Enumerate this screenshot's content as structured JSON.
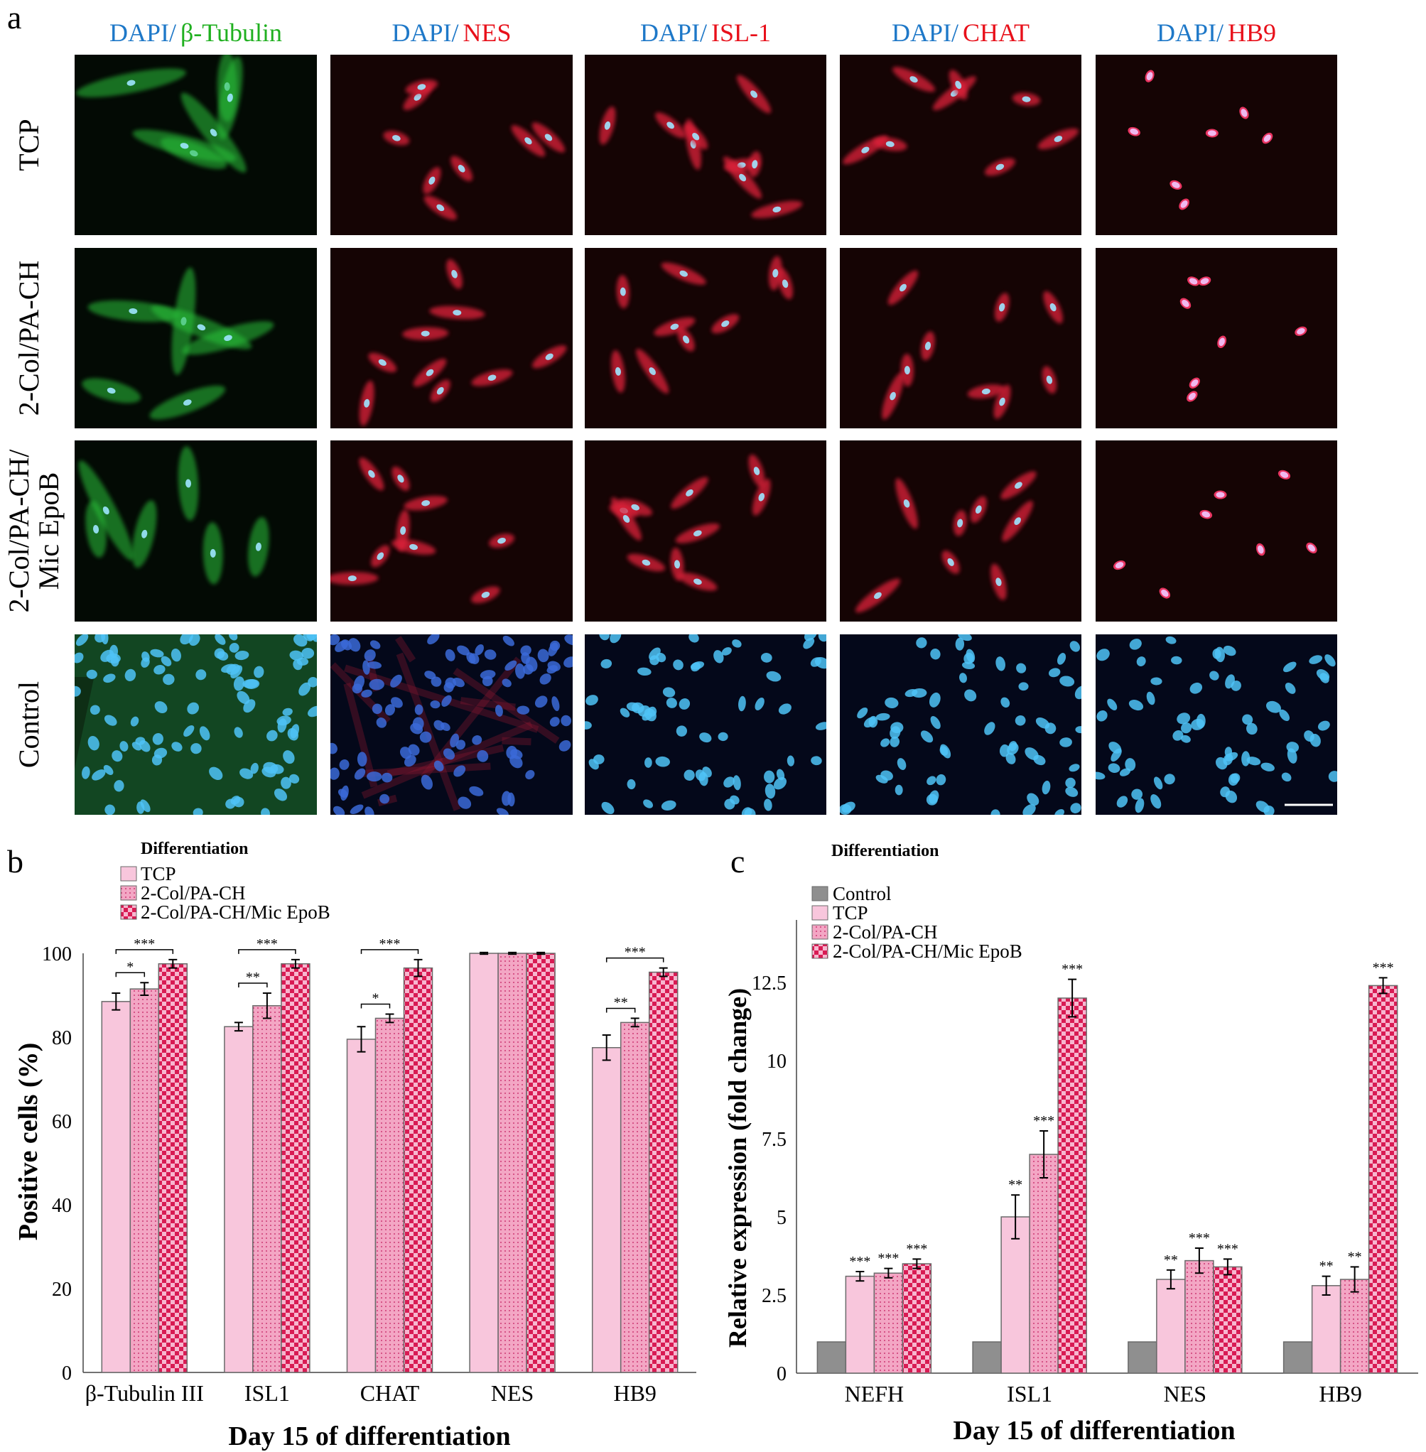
{
  "panels": {
    "a": "a",
    "b": "b",
    "c": "c"
  },
  "microscopy": {
    "columns": [
      {
        "prefix": "DAPI/",
        "marker": "β-Tubulin",
        "marker_color": "#20b020",
        "stain": "#2cc43a"
      },
      {
        "prefix": "DAPI/",
        "marker": "NES",
        "marker_color": "#e8101a",
        "stain": "#e0203a"
      },
      {
        "prefix": "DAPI/",
        "marker": "ISL-1",
        "marker_color": "#e8101a",
        "stain": "#e0203a"
      },
      {
        "prefix": "DAPI/",
        "marker": "CHAT",
        "marker_color": "#e8101a",
        "stain": "#e0203a"
      },
      {
        "prefix": "DAPI/",
        "marker": "HB9",
        "marker_color": "#e8101a",
        "stain": "#ee2050"
      }
    ],
    "prefix_color": "#1e78c8",
    "rows": [
      {
        "label_lines": [
          "TCP"
        ]
      },
      {
        "label_lines": [
          "2-Col/PA-CH"
        ]
      },
      {
        "label_lines": [
          "2-Col/PA-CH/",
          "Mic EpoB"
        ]
      },
      {
        "label_lines": [
          "Control"
        ]
      }
    ],
    "dapi_color": "#4fc3f7",
    "panel_background": "#150404",
    "control_background": "#04081a"
  },
  "chart_data": [
    {
      "id": "b",
      "type": "bar",
      "legend_title": "Differentiation",
      "legend_placement": "top-left",
      "categories": [
        "β-Tubulin III",
        "ISL1",
        "CHAT",
        "NES",
        "HB9"
      ],
      "series": [
        {
          "name": "TCP",
          "fill": "solid-pink",
          "values": [
            88.5,
            82.5,
            79.5,
            100,
            77.5
          ],
          "errors": [
            2.0,
            1.0,
            3.0,
            0.2,
            3.0
          ]
        },
        {
          "name": "2-Col/PA-CH",
          "fill": "dotted-pink",
          "values": [
            91.5,
            87.5,
            84.5,
            100,
            83.5
          ],
          "errors": [
            1.5,
            3.0,
            1.0,
            0.2,
            1.0
          ]
        },
        {
          "name": "2-Col/PA-CH/Mic EpoB",
          "fill": "checkered-red",
          "values": [
            97.5,
            97.5,
            96.5,
            100,
            95.5
          ],
          "errors": [
            1.0,
            1.0,
            2.0,
            0.2,
            1.0
          ]
        }
      ],
      "significance": [
        {
          "category": 0,
          "from": 0,
          "to": 1,
          "label": "*"
        },
        {
          "category": 0,
          "from": 0,
          "to": 2,
          "label": "***"
        },
        {
          "category": 1,
          "from": 0,
          "to": 1,
          "label": "**"
        },
        {
          "category": 1,
          "from": 0,
          "to": 2,
          "label": "***"
        },
        {
          "category": 2,
          "from": 0,
          "to": 1,
          "label": "*"
        },
        {
          "category": 2,
          "from": 0,
          "to": 2,
          "label": "***"
        },
        {
          "category": 4,
          "from": 0,
          "to": 1,
          "label": "**"
        },
        {
          "category": 4,
          "from": 0,
          "to": 2,
          "label": "***"
        }
      ],
      "xlabel": "Day 15 of differentiation",
      "ylabel": "Positive cells (%)",
      "ylim": [
        0,
        100
      ],
      "yticks": [
        0,
        20,
        40,
        60,
        80,
        100
      ],
      "grid": false
    },
    {
      "id": "c",
      "type": "bar",
      "legend_title": "Differentiation",
      "legend_placement": "top-left",
      "categories": [
        "NEFH",
        "ISL1",
        "NES",
        "HB9"
      ],
      "series": [
        {
          "name": "Control",
          "fill": "solid-gray",
          "values": [
            1.0,
            1.0,
            1.0,
            1.0
          ],
          "errors": [
            0.02,
            0.02,
            0.02,
            0.02
          ],
          "stars": [
            "",
            "",
            "",
            ""
          ]
        },
        {
          "name": "TCP",
          "fill": "solid-pink",
          "values": [
            3.1,
            5.0,
            3.0,
            2.8
          ],
          "errors": [
            0.15,
            0.7,
            0.3,
            0.3
          ],
          "stars": [
            "***",
            "**",
            "**",
            "**"
          ]
        },
        {
          "name": "2-Col/PA-CH",
          "fill": "dotted-pink",
          "values": [
            3.2,
            7.0,
            3.6,
            3.0
          ],
          "errors": [
            0.15,
            0.75,
            0.4,
            0.4
          ],
          "stars": [
            "***",
            "***",
            "***",
            "**"
          ]
        },
        {
          "name": "2-Col/PA-CH/Mic EpoB",
          "fill": "checkered-red",
          "values": [
            3.5,
            12.0,
            3.4,
            12.4
          ],
          "errors": [
            0.15,
            0.6,
            0.25,
            0.25
          ],
          "stars": [
            "***",
            "***",
            "***",
            "***"
          ]
        }
      ],
      "xlabel": "Day 15 of differentiation",
      "ylabel": "Relative expression (fold change)",
      "ylim": [
        0,
        14.5
      ],
      "yticks": [
        0,
        2.5,
        5,
        7.5,
        10,
        12.5
      ],
      "ytick_labels": [
        "0",
        "2.5",
        "5",
        "7.5",
        "10",
        "12.5"
      ],
      "grid": false
    }
  ]
}
